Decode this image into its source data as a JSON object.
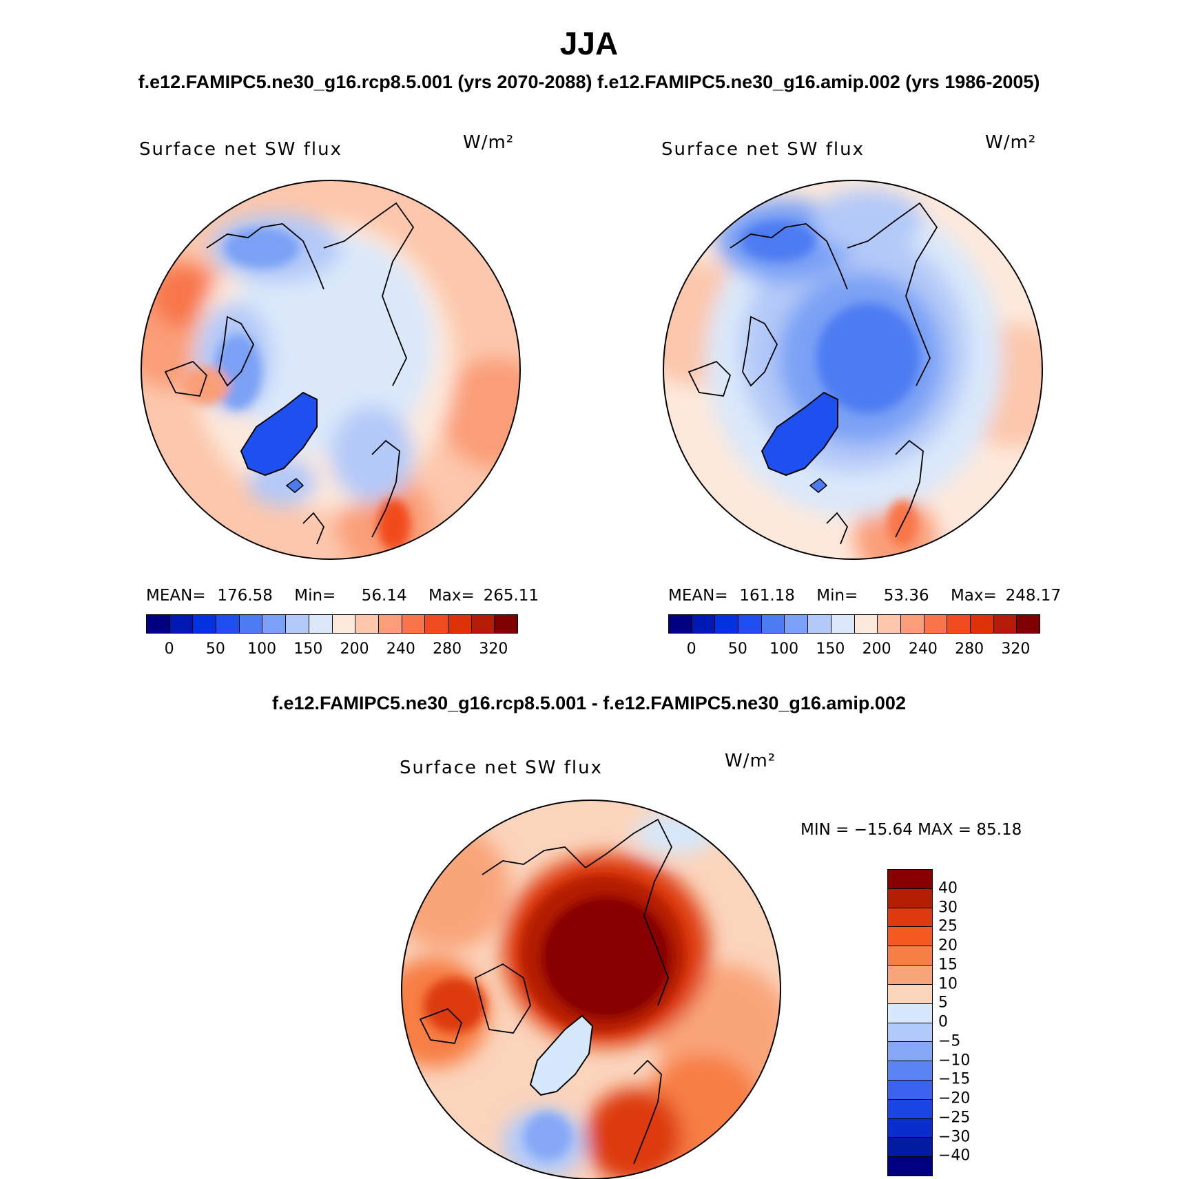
{
  "title": "JJA",
  "subtitle": "f.e12.FAMIPC5.ne30_g16.rcp8.5.001 (yrs 2070-2088)   f.e12.FAMIPC5.ne30_g16.amip.002 (yrs 1986-2005)",
  "diff_title": "f.e12.FAMIPC5.ne30_g16.rcp8.5.001 - f.e12.FAMIPC5.ne30_g16.amip.002",
  "panels": [
    {
      "variable": "Surface net SW flux",
      "units": "W/m²",
      "mean_label": "MEAN=",
      "mean": "176.58",
      "min_label": "Min=",
      "min": "56.14",
      "max_label": "Max=",
      "max": "265.11"
    },
    {
      "variable": "Surface net SW flux",
      "units": "W/m²",
      "mean_label": "MEAN=",
      "mean": "161.18",
      "min_label": "Min=",
      "min": "53.36",
      "max_label": "Max=",
      "max": "248.17"
    }
  ],
  "diff_panel": {
    "variable": "Surface net SW flux",
    "units": "W/m²",
    "minmax": "MIN = −15.64 MAX =  85.18"
  },
  "colorbar_main": {
    "colors": [
      "#000080",
      "#0019b3",
      "#0033dd",
      "#1e50f0",
      "#4d7cf2",
      "#7aa1f5",
      "#b3c9f8",
      "#dae8fa",
      "#fde9dc",
      "#fcc7ac",
      "#fa9e78",
      "#f8764a",
      "#f14c1f",
      "#dc3208",
      "#b41c05",
      "#7f0000"
    ],
    "ticks": [
      "0",
      "50",
      "100",
      "150",
      "200",
      "240",
      "280",
      "320"
    ]
  },
  "colorbar_diff": {
    "colors": [
      "#880000",
      "#b41f03",
      "#dd3a0d",
      "#f55a1e",
      "#f77e44",
      "#f9a57a",
      "#fbd4bc",
      "#d6e8fb",
      "#b1cafa",
      "#85a7f6",
      "#5a84f3",
      "#3a63ef",
      "#1c45e6",
      "#0a2ecd",
      "#001aa0",
      "#000080"
    ],
    "ticks": [
      "40",
      "30",
      "25",
      "20",
      "15",
      "10",
      "5",
      "0",
      "−5",
      "−10",
      "−15",
      "−20",
      "−25",
      "−30",
      "−40"
    ]
  },
  "map_palette": {
    "land_ice": "#1e50f0",
    "blue_mid": "#4d7cf2",
    "blue_light": "#7aa1f5",
    "pale_blue": "#dae8fa",
    "cream": "#fde9dc",
    "salmon": "#fcc7ac",
    "orange": "#fa9e78",
    "red_orange": "#f8764a",
    "dark_red": "#880000"
  }
}
